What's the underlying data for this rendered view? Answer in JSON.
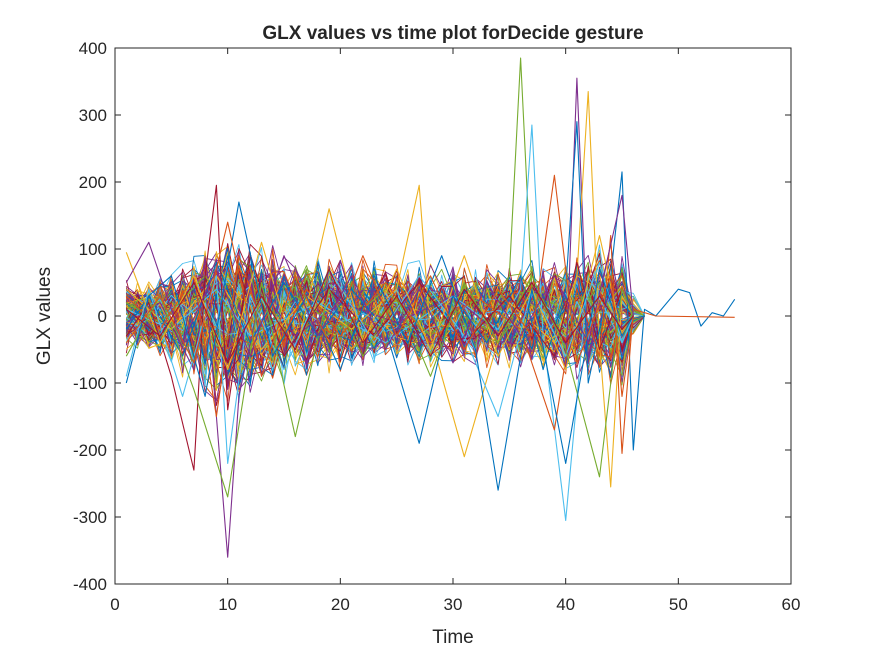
{
  "chart_data": {
    "type": "line",
    "title": "GLX values vs time plot forDecide gesture",
    "xlabel": "Time",
    "ylabel": "GLX values",
    "xlim": [
      0,
      60
    ],
    "ylim": [
      -400,
      400
    ],
    "xticks": [
      0,
      10,
      20,
      30,
      40,
      50,
      60
    ],
    "yticks": [
      -400,
      -300,
      -200,
      -100,
      0,
      100,
      200,
      300,
      400
    ],
    "xtick_labels": [
      "0",
      "10",
      "20",
      "30",
      "40",
      "50",
      "60"
    ],
    "ytick_labels": [
      "-400",
      "-300",
      "-200",
      "-100",
      "0",
      "100",
      "200",
      "300",
      "400"
    ],
    "grid": false,
    "legend": "none",
    "box": true,
    "series_count_approx": 300,
    "colors": [
      "#0072BD",
      "#D95319",
      "#EDB120",
      "#7E2F8E",
      "#77AC30",
      "#4DBEEE",
      "#A2142F"
    ],
    "series": [
      {
        "color": "#77AC30",
        "x": [
          1,
          4,
          8,
          12,
          16,
          20,
          24,
          28,
          30,
          33,
          35,
          36,
          37,
          40,
          43,
          45,
          46,
          47
        ],
        "y": [
          20,
          -10,
          60,
          -40,
          30,
          -20,
          40,
          -30,
          10,
          -20,
          60,
          385,
          40,
          -30,
          50,
          -40,
          10,
          0
        ]
      },
      {
        "color": "#7E2F8E",
        "x": [
          1,
          4,
          7,
          8,
          9,
          10,
          11,
          13,
          16,
          20,
          25,
          30,
          35,
          38,
          40,
          41,
          42,
          44,
          45,
          46
        ],
        "y": [
          -10,
          20,
          -80,
          50,
          -150,
          -360,
          -120,
          40,
          -30,
          20,
          -10,
          30,
          -40,
          60,
          -80,
          355,
          -60,
          40,
          -20,
          0
        ]
      },
      {
        "color": "#4DBEEE",
        "x": [
          1,
          5,
          9,
          12,
          18,
          24,
          30,
          34,
          36,
          37,
          38,
          40,
          42,
          45,
          46
        ],
        "y": [
          10,
          -20,
          40,
          -30,
          20,
          -40,
          30,
          -20,
          40,
          285,
          -30,
          -305,
          60,
          -40,
          0
        ]
      },
      {
        "color": "#EDB120",
        "x": [
          1,
          5,
          9,
          13,
          17,
          21,
          25,
          27,
          28,
          31,
          35,
          39,
          41,
          42,
          43,
          44,
          45,
          46
        ],
        "y": [
          40,
          -20,
          60,
          -50,
          30,
          -20,
          40,
          195,
          -30,
          -210,
          20,
          -40,
          60,
          335,
          -40,
          -255,
          30,
          0
        ]
      },
      {
        "color": "#0072BD",
        "x": [
          1,
          3,
          6,
          9,
          12,
          15,
          18,
          21,
          24,
          27,
          30,
          33,
          36,
          38,
          40,
          41,
          42,
          44,
          45,
          46,
          47,
          48,
          50,
          51,
          52,
          53,
          54,
          55
        ],
        "y": [
          -20,
          30,
          -60,
          80,
          -40,
          50,
          -30,
          40,
          -20,
          -190,
          30,
          -40,
          60,
          -80,
          40,
          290,
          -100,
          60,
          215,
          -200,
          10,
          0,
          40,
          35,
          -15,
          5,
          0,
          25
        ]
      },
      {
        "color": "#D95319",
        "x": [
          1,
          4,
          7,
          9,
          11,
          14,
          17,
          20,
          24,
          28,
          32,
          36,
          39,
          41,
          43,
          44,
          45,
          46,
          48,
          55
        ],
        "y": [
          30,
          -20,
          60,
          -150,
          90,
          -60,
          40,
          -30,
          50,
          -40,
          30,
          -20,
          -170,
          40,
          -60,
          120,
          -205,
          10,
          0,
          -2
        ]
      },
      {
        "color": "#A2142F",
        "x": [
          1,
          3,
          5,
          7,
          8,
          9,
          10,
          12,
          15,
          19,
          23,
          27,
          31,
          35,
          39,
          41,
          43,
          45,
          46
        ],
        "y": [
          -30,
          20,
          -90,
          -230,
          60,
          195,
          -140,
          90,
          -60,
          40,
          -30,
          50,
          -40,
          30,
          -60,
          80,
          -50,
          40,
          0
        ]
      },
      {
        "color": "#4DBEEE",
        "x": [
          1,
          3,
          6,
          9,
          10,
          12,
          15,
          19,
          23,
          27,
          31,
          34,
          37,
          40,
          43,
          45,
          46
        ],
        "y": [
          -90,
          40,
          -120,
          60,
          -220,
          30,
          -80,
          70,
          -40,
          60,
          -30,
          -150,
          40,
          -60,
          80,
          -40,
          0
        ]
      },
      {
        "color": "#EDB120",
        "x": [
          1,
          4,
          7,
          10,
          13,
          16,
          19,
          22,
          25,
          28,
          31,
          34,
          37,
          40,
          43,
          45,
          46
        ],
        "y": [
          95,
          -40,
          60,
          -80,
          110,
          -60,
          160,
          -40,
          70,
          -50,
          90,
          -60,
          40,
          -80,
          120,
          -30,
          0
        ]
      },
      {
        "color": "#77AC30",
        "x": [
          1,
          4,
          7,
          10,
          13,
          16,
          19,
          22,
          25,
          28,
          31,
          34,
          37,
          40,
          43,
          45,
          46
        ],
        "y": [
          -60,
          30,
          -110,
          -270,
          50,
          -180,
          40,
          -60,
          30,
          -90,
          50,
          -40,
          60,
          -50,
          -240,
          40,
          0
        ]
      },
      {
        "color": "#0072BD",
        "x": [
          1,
          3,
          5,
          8,
          11,
          14,
          17,
          20,
          23,
          26,
          29,
          32,
          34,
          37,
          40,
          43,
          45,
          46
        ],
        "y": [
          -100,
          30,
          60,
          -120,
          170,
          -60,
          30,
          -80,
          60,
          -40,
          90,
          -50,
          -260,
          40,
          -220,
          70,
          -30,
          0
        ]
      },
      {
        "color": "#7E2F8E",
        "x": [
          1,
          3,
          6,
          9,
          12,
          15,
          18,
          21,
          24,
          27,
          30,
          33,
          36,
          39,
          42,
          45,
          46
        ],
        "y": [
          50,
          110,
          -40,
          70,
          -60,
          90,
          -30,
          60,
          -50,
          40,
          -70,
          50,
          -30,
          60,
          -40,
          180,
          0
        ]
      },
      {
        "color": "#D95319",
        "x": [
          1,
          4,
          7,
          10,
          13,
          16,
          19,
          22,
          25,
          28,
          31,
          34,
          37,
          39,
          41,
          44,
          45,
          46
        ],
        "y": [
          -40,
          30,
          -70,
          140,
          -90,
          60,
          -40,
          90,
          -30,
          60,
          -50,
          40,
          -30,
          210,
          -70,
          60,
          -120,
          0
        ]
      },
      {
        "color": "#A2142F",
        "x": [
          1,
          4,
          7,
          10,
          13,
          16,
          19,
          22,
          25,
          28,
          31,
          34,
          37,
          40,
          43,
          45,
          46
        ],
        "y": [
          10,
          -30,
          50,
          -70,
          30,
          -50,
          70,
          -40,
          30,
          -60,
          40,
          -30,
          50,
          -40,
          30,
          -20,
          0
        ]
      }
    ],
    "band_envelope": {
      "x": [
        1,
        2,
        3,
        4,
        5,
        6,
        7,
        8,
        9,
        10,
        11,
        12,
        13,
        14,
        15,
        16,
        17,
        18,
        19,
        20,
        21,
        22,
        23,
        24,
        25,
        26,
        27,
        28,
        29,
        30,
        31,
        32,
        33,
        34,
        35,
        36,
        37,
        38,
        39,
        40,
        41,
        42,
        43,
        44,
        45,
        46,
        47
      ],
      "upper": [
        60,
        55,
        65,
        70,
        70,
        80,
        100,
        110,
        120,
        130,
        125,
        120,
        115,
        110,
        105,
        100,
        100,
        95,
        95,
        95,
        90,
        90,
        85,
        85,
        85,
        80,
        85,
        85,
        80,
        80,
        80,
        80,
        80,
        80,
        85,
        85,
        90,
        90,
        90,
        95,
        100,
        100,
        110,
        110,
        120,
        40,
        5
      ],
      "lower": [
        -60,
        -55,
        -60,
        -70,
        -80,
        -100,
        -120,
        -140,
        -150,
        -150,
        -140,
        -130,
        -120,
        -110,
        -105,
        -100,
        -95,
        -90,
        -90,
        -85,
        -85,
        -85,
        -80,
        -80,
        -80,
        -80,
        -80,
        -80,
        -80,
        -80,
        -80,
        -80,
        -80,
        -80,
        -85,
        -85,
        -90,
        -90,
        -95,
        -100,
        -100,
        -100,
        -105,
        -110,
        -120,
        -40,
        -5
      ]
    }
  }
}
